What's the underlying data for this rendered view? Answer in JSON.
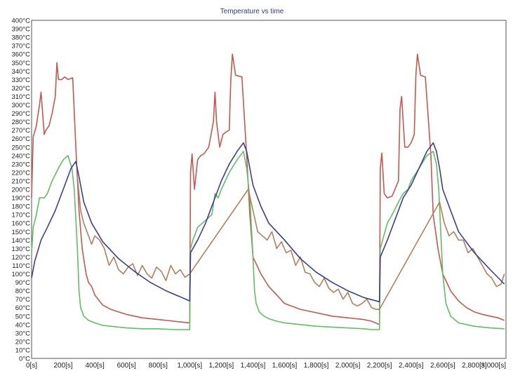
{
  "chart_data": {
    "type": "line",
    "title": "Temperature vs time",
    "xlabel": "",
    "ylabel": "",
    "xlim": [
      0,
      3000
    ],
    "ylim": [
      0,
      400
    ],
    "x_tick_labels": [
      "0[s]",
      "200[s]",
      "400[s]",
      "600[s]",
      "800[s]",
      "1,000[s]",
      "1,200[s]",
      "1,400[s]",
      "1,600[s]",
      "1,800[s]",
      "2,000[s]",
      "2,200[s]",
      "2,400[s]",
      "2,600[s]",
      "2,800[s]",
      "3,000[s]"
    ],
    "y_tick_labels": [
      "0°C",
      "10°C",
      "20°C",
      "30°C",
      "40°C",
      "50°C",
      "60°C",
      "70°C",
      "80°C",
      "90°C",
      "100°C",
      "110°C",
      "120°C",
      "130°C",
      "140°C",
      "150°C",
      "160°C",
      "170°C",
      "180°C",
      "190°C",
      "200°C",
      "210°C",
      "220°C",
      "230°C",
      "240°C",
      "250°C",
      "260°C",
      "270°C",
      "280°C",
      "290°C",
      "300°C",
      "310°C",
      "320°C",
      "330°C",
      "340°C",
      "350°C",
      "360°C",
      "370°C",
      "380°C",
      "390°C",
      "400°C"
    ],
    "grid": false,
    "legend": "none",
    "series": [
      {
        "color": "#c9574d",
        "x": [
          0,
          10,
          30,
          50,
          60,
          70,
          80,
          90,
          110,
          130,
          150,
          160,
          170,
          190,
          210,
          230,
          260,
          285,
          300,
          320,
          345,
          360,
          380,
          400,
          450,
          500,
          550,
          600,
          700,
          800,
          900,
          1000,
          1005,
          1015,
          1030,
          1050,
          1070,
          1090,
          1120,
          1150,
          1160,
          1170,
          1190,
          1210,
          1230,
          1250,
          1260,
          1270,
          1290,
          1330,
          1360,
          1380,
          1400,
          1450,
          1500,
          1550,
          1600,
          1700,
          1800,
          1900,
          2000,
          2100,
          2150,
          2200,
          2205,
          2215,
          2230,
          2250,
          2280,
          2320,
          2330,
          2340,
          2360,
          2380,
          2400,
          2420,
          2430,
          2440,
          2460,
          2490,
          2525,
          2540,
          2570,
          2600,
          2650,
          2700,
          2750,
          2800,
          2850,
          2900,
          2950,
          2990
        ],
        "y": [
          190,
          262,
          275,
          300,
          315,
          290,
          265,
          270,
          275,
          290,
          310,
          350,
          330,
          330,
          333,
          330,
          332,
          230,
          175,
          130,
          100,
          90,
          85,
          75,
          63,
          58,
          55,
          52,
          48,
          46,
          44,
          42,
          220,
          242,
          200,
          235,
          240,
          242,
          250,
          280,
          315,
          280,
          250,
          265,
          268,
          270,
          330,
          360,
          335,
          333,
          240,
          170,
          120,
          100,
          85,
          75,
          65,
          58,
          54,
          50,
          48,
          46,
          44,
          40,
          225,
          243,
          195,
          190,
          192,
          210,
          295,
          310,
          250,
          250,
          255,
          265,
          335,
          360,
          335,
          333,
          240,
          170,
          130,
          100,
          80,
          68,
          60,
          55,
          52,
          50,
          48,
          45
        ]
      },
      {
        "color": "#5fbf63",
        "x": [
          0,
          10,
          30,
          50,
          80,
          100,
          130,
          170,
          200,
          230,
          255,
          270,
          290,
          300,
          310,
          330,
          360,
          400,
          450,
          500,
          550,
          600,
          700,
          800,
          900,
          1000,
          1005,
          1020,
          1050,
          1080,
          1110,
          1140,
          1160,
          1180,
          1200,
          1250,
          1300,
          1340,
          1360,
          1380,
          1400,
          1410,
          1420,
          1440,
          1470,
          1500,
          1550,
          1600,
          1700,
          1800,
          1900,
          2000,
          2100,
          2150,
          2200,
          2205,
          2220,
          2250,
          2280,
          2320,
          2350,
          2380,
          2400,
          2450,
          2500,
          2540,
          2560,
          2575,
          2590,
          2600,
          2620,
          2650,
          2700,
          2750,
          2800,
          2900,
          2990
        ],
        "y": [
          125,
          155,
          170,
          190,
          190,
          195,
          210,
          225,
          235,
          240,
          225,
          200,
          130,
          80,
          60,
          50,
          45,
          42,
          39,
          38,
          37,
          36,
          35,
          35,
          34,
          34,
          130,
          140,
          155,
          160,
          165,
          170,
          195,
          190,
          200,
          220,
          235,
          245,
          225,
          190,
          120,
          80,
          65,
          55,
          50,
          47,
          44,
          42,
          40,
          38,
          37,
          36,
          35,
          34,
          34,
          130,
          140,
          160,
          170,
          185,
          195,
          200,
          210,
          225,
          240,
          245,
          230,
          200,
          140,
          100,
          65,
          50,
          42,
          40,
          38,
          36,
          35
        ]
      },
      {
        "color": "#b0805f",
        "x": [
          290,
          310,
          330,
          350,
          380,
          400,
          430,
          460,
          490,
          520,
          550,
          580,
          610,
          640,
          670,
          700,
          730,
          760,
          790,
          820,
          850,
          880,
          910,
          940,
          970,
          1000,
          1370,
          1400,
          1430,
          1460,
          1490,
          1520,
          1550,
          1580,
          1610,
          1640,
          1670,
          1700,
          1730,
          1760,
          1790,
          1820,
          1850,
          1880,
          1910,
          1940,
          1970,
          2000,
          2030,
          2060,
          2090,
          2120,
          2150,
          2180,
          2200,
          2580,
          2610,
          2640,
          2670,
          2700,
          2730,
          2760,
          2790,
          2820,
          2850,
          2880,
          2910,
          2940,
          2970,
          2990
        ],
        "y": [
          215,
          175,
          160,
          150,
          135,
          145,
          140,
          130,
          110,
          120,
          105,
          100,
          108,
          112,
          98,
          110,
          100,
          95,
          108,
          103,
          92,
          110,
          100,
          105,
          96,
          100,
          200,
          175,
          150,
          145,
          140,
          150,
          130,
          138,
          125,
          128,
          110,
          120,
          102,
          100,
          90,
          85,
          95,
          83,
          78,
          82,
          70,
          78,
          65,
          62,
          65,
          70,
          60,
          58,
          58,
          185,
          160,
          145,
          150,
          140,
          140,
          125,
          130,
          120,
          110,
          100,
          95,
          85,
          88,
          100
        ]
      },
      {
        "color": "#3c3f8f",
        "x": [
          0,
          20,
          60,
          100,
          150,
          200,
          250,
          280,
          300,
          330,
          380,
          450,
          550,
          650,
          750,
          850,
          950,
          1000,
          1005,
          1050,
          1100,
          1150,
          1200,
          1250,
          1300,
          1340,
          1360,
          1380,
          1400,
          1450,
          1500,
          1600,
          1700,
          1800,
          1900,
          2000,
          2100,
          2200,
          2205,
          2250,
          2300,
          2350,
          2400,
          2450,
          2500,
          2540,
          2560,
          2580,
          2600,
          2650,
          2700,
          2800,
          2900,
          2990
        ],
        "y": [
          95,
          115,
          140,
          155,
          175,
          200,
          225,
          233,
          215,
          185,
          160,
          138,
          118,
          103,
          90,
          80,
          72,
          68,
          125,
          140,
          160,
          185,
          210,
          230,
          245,
          255,
          245,
          225,
          205,
          180,
          160,
          140,
          118,
          102,
          90,
          80,
          72,
          67,
          120,
          140,
          165,
          190,
          205,
          225,
          245,
          255,
          245,
          225,
          200,
          175,
          150,
          125,
          105,
          88
        ]
      }
    ]
  }
}
